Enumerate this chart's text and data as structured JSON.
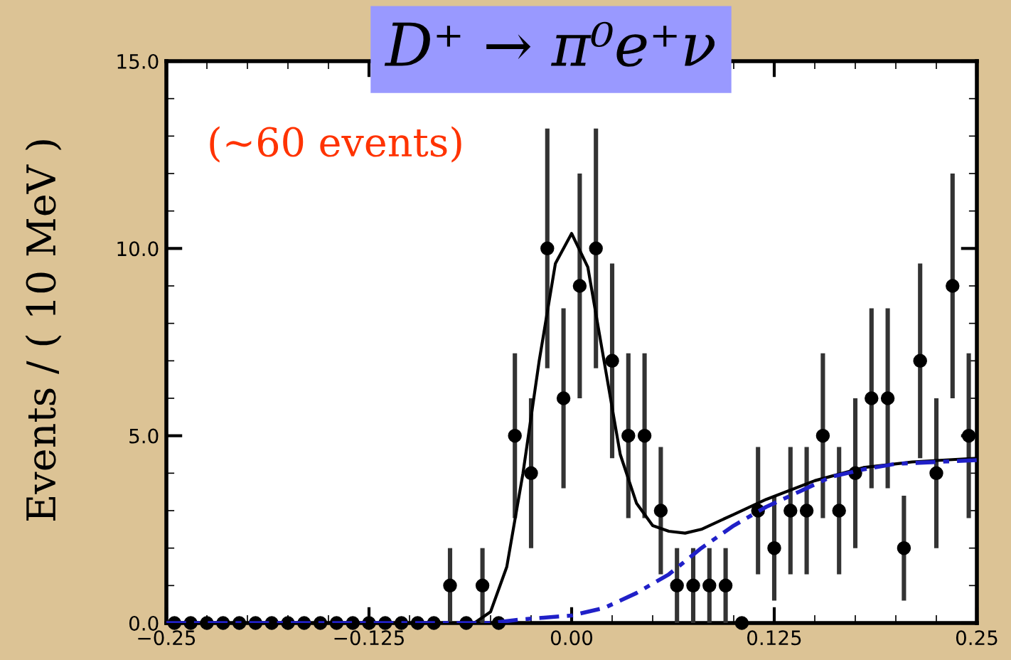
{
  "chart_data": {
    "type": "scatter",
    "title": "D⁺ → π⁰e⁺ν",
    "ylabel": "Events / ( 10 MeV )",
    "annotations": [
      "(~60 events)"
    ],
    "xlim": [
      -0.25,
      0.25
    ],
    "xticks": [
      {
        "value": -0.25,
        "label": "−0.25"
      },
      {
        "value": -0.125,
        "label": "−0.125"
      },
      {
        "value": 0,
        "label": "0.00"
      },
      {
        "value": 0.125,
        "label": "0.125"
      },
      {
        "value": 0.25,
        "label": "0.25"
      }
    ],
    "ylim": [
      0,
      15
    ],
    "yticks": [
      {
        "value": 0,
        "label": "0.0"
      },
      {
        "value": 5,
        "label": "5.0"
      },
      {
        "value": 10,
        "label": "10.0"
      },
      {
        "value": 15,
        "label": "15.0"
      }
    ],
    "grid": false,
    "legend": false,
    "marker": "circle",
    "x": [
      -0.245,
      -0.235,
      -0.225,
      -0.215,
      -0.205,
      -0.195,
      -0.185,
      -0.175,
      -0.165,
      -0.155,
      -0.145,
      -0.135,
      -0.125,
      -0.115,
      -0.105,
      -0.095,
      -0.085,
      -0.075,
      -0.065,
      -0.055,
      -0.045,
      -0.035,
      -0.025,
      -0.015,
      -0.005,
      0.005,
      0.015,
      0.025,
      0.035,
      0.045,
      0.055,
      0.065,
      0.075,
      0.085,
      0.095,
      0.105,
      0.115,
      0.125,
      0.135,
      0.145,
      0.155,
      0.165,
      0.175,
      0.185,
      0.195,
      0.205,
      0.215,
      0.225,
      0.235,
      0.245
    ],
    "series": [
      {
        "color": "#000000",
        "values": [
          0,
          0,
          0,
          0,
          0,
          0,
          0,
          0,
          0,
          0,
          0,
          0,
          0,
          0,
          0,
          0,
          0,
          1,
          0,
          1,
          0,
          5,
          4,
          10,
          6,
          9,
          10,
          7,
          5,
          5,
          3,
          1,
          1,
          1,
          1,
          0,
          3,
          2,
          3,
          3,
          5,
          3,
          4,
          6,
          6,
          2,
          7,
          4,
          9,
          5
        ],
        "errors": [
          null,
          null,
          null,
          null,
          null,
          null,
          null,
          null,
          null,
          null,
          null,
          null,
          null,
          null,
          null,
          null,
          null,
          1,
          null,
          1,
          null,
          2.2,
          2,
          3.2,
          2.4,
          3,
          3.2,
          2.6,
          2.2,
          2.2,
          1.7,
          1,
          1,
          1,
          1,
          null,
          1.7,
          1.4,
          1.7,
          1.7,
          2.2,
          1.7,
          2,
          2.4,
          2.4,
          1.4,
          2.6,
          2,
          3,
          2.2
        ]
      },
      {
        "type": "line",
        "color": "#000000",
        "line_style": "solid",
        "marker": "none",
        "x": [
          -0.25,
          -0.06,
          -0.05,
          -0.04,
          -0.03,
          -0.02,
          -0.01,
          0.0,
          0.01,
          0.02,
          0.03,
          0.04,
          0.05,
          0.06,
          0.07,
          0.08,
          0.1,
          0.12,
          0.15,
          0.18,
          0.21,
          0.25
        ],
        "values": [
          0,
          0,
          0.3,
          1.5,
          4,
          7,
          9.6,
          10.4,
          9.5,
          7,
          4.5,
          3.2,
          2.6,
          2.45,
          2.4,
          2.5,
          2.9,
          3.3,
          3.8,
          4.15,
          4.3,
          4.4
        ]
      },
      {
        "type": "line",
        "color": "#2020c8",
        "line_style": "dashed",
        "marker": "none",
        "x": [
          -0.25,
          -0.05,
          -0.03,
          0.0,
          0.02,
          0.04,
          0.06,
          0.08,
          0.1,
          0.12,
          0.14,
          0.16,
          0.18,
          0.2,
          0.25
        ],
        "values": [
          0,
          0,
          0.1,
          0.2,
          0.4,
          0.8,
          1.3,
          2.0,
          2.6,
          3.1,
          3.5,
          3.9,
          4.1,
          4.25,
          4.35
        ]
      }
    ]
  }
}
